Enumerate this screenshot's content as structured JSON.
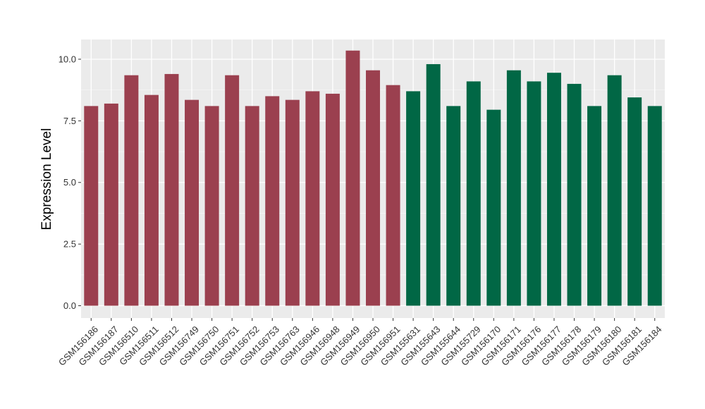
{
  "chart_data": {
    "type": "bar",
    "ylabel": "Expression Level",
    "xlabel": "",
    "ylim": [
      -0.5,
      10.8
    ],
    "yticks": [
      0.0,
      2.5,
      5.0,
      7.5,
      10.0
    ],
    "ytick_labels": [
      "0.0",
      "2.5",
      "5.0",
      "7.5",
      "10.0"
    ],
    "grid": true,
    "panel_background": "#ebebeb",
    "grid_color": "#ffffff",
    "categories": [
      "GSM156186",
      "GSM156187",
      "GSM156510",
      "GSM156511",
      "GSM156512",
      "GSM156749",
      "GSM156750",
      "GSM156751",
      "GSM156752",
      "GSM156753",
      "GSM156763",
      "GSM156946",
      "GSM156948",
      "GSM156949",
      "GSM156950",
      "GSM156951",
      "GSM155631",
      "GSM155643",
      "GSM155644",
      "GSM155729",
      "GSM156170",
      "GSM156171",
      "GSM156176",
      "GSM156177",
      "GSM156178",
      "GSM156179",
      "GSM156180",
      "GSM156181",
      "GSM156184"
    ],
    "values": [
      8.1,
      8.2,
      9.35,
      8.55,
      9.4,
      8.35,
      8.1,
      9.35,
      8.1,
      8.5,
      8.35,
      8.7,
      8.6,
      10.35,
      9.55,
      8.95,
      8.7,
      9.8,
      8.1,
      9.1,
      7.95,
      9.55,
      9.1,
      9.45,
      9.0,
      8.1,
      9.35,
      8.45,
      8.1
    ],
    "groups": [
      0,
      0,
      0,
      0,
      0,
      0,
      0,
      0,
      0,
      0,
      0,
      0,
      0,
      0,
      0,
      0,
      1,
      1,
      1,
      1,
      1,
      1,
      1,
      1,
      1,
      1,
      1,
      1,
      1
    ],
    "group_colors": [
      "#9b404f",
      "#016745"
    ]
  }
}
